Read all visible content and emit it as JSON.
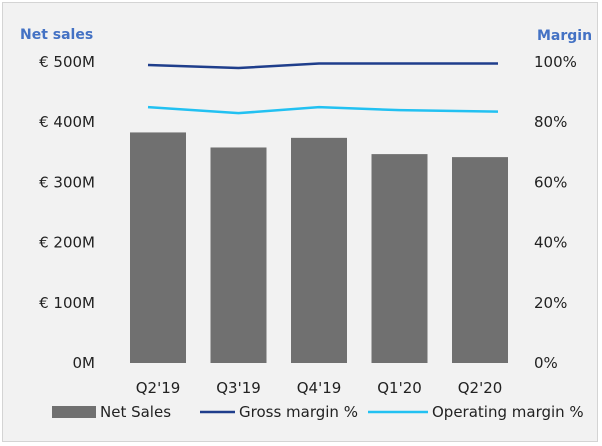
{
  "chart_data": {
    "type": "bar",
    "categories": [
      "Q2'19",
      "Q3'19",
      "Q4'19",
      "Q1'20",
      "Q2'20"
    ],
    "series": [
      {
        "name": "Net Sales",
        "type": "bar",
        "axis": "left",
        "color": "#707070",
        "values": [
          383,
          358,
          374,
          347,
          342
        ]
      },
      {
        "name": "Gross margin %",
        "type": "line",
        "axis": "right",
        "color": "#1f3e8c",
        "values": [
          99,
          98,
          99.5,
          99.5,
          99.5
        ]
      },
      {
        "name": "Operating margin %",
        "type": "line",
        "axis": "right",
        "color": "#22c1f2",
        "values": [
          85,
          83,
          85,
          84,
          83.5
        ]
      }
    ],
    "ylabel_left": "Net sales",
    "ylabel_right": "Margin",
    "ylim_left": [
      0,
      500
    ],
    "ylim_right": [
      0,
      100
    ],
    "yticks_left": [
      "0M",
      "€ 100M",
      "€ 200M",
      "€ 300M",
      "€ 400M",
      "€ 500M"
    ],
    "yticks_right": [
      "0%",
      "20%",
      "40%",
      "60%",
      "80%",
      "100%"
    ],
    "grid": false,
    "legend_position": "bottom"
  }
}
